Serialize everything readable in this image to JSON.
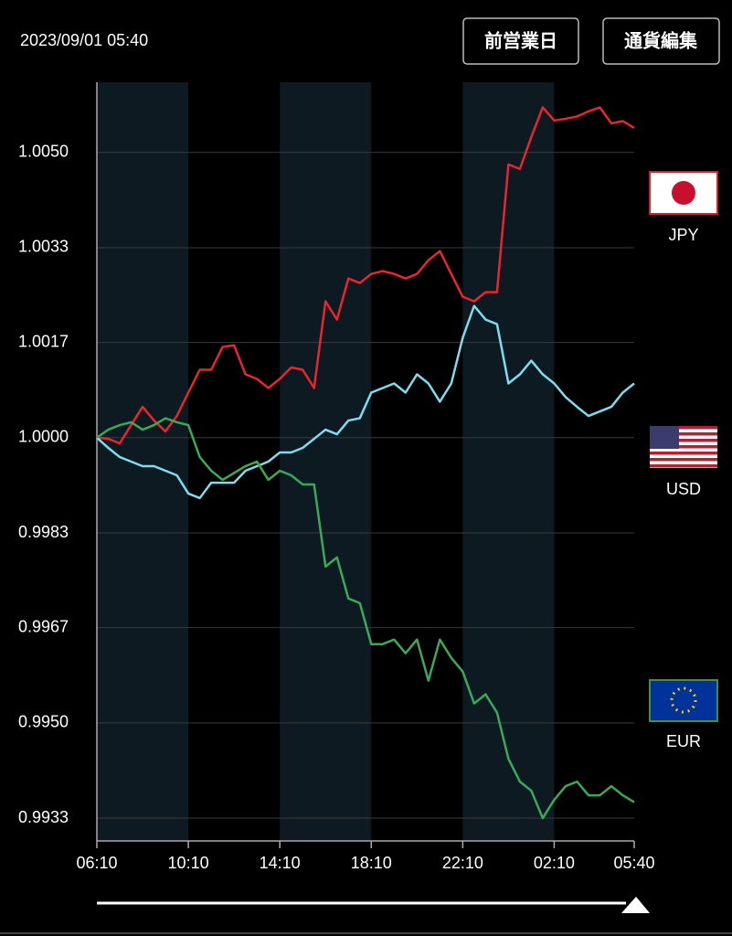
{
  "header": {
    "timestamp": "2023/09/01 05:40",
    "buttons": [
      "前営業日",
      "通貨編集"
    ]
  },
  "chart_data": {
    "type": "line",
    "x": [
      "06:10",
      "06:40",
      "07:10",
      "07:40",
      "08:10",
      "08:40",
      "09:10",
      "09:40",
      "10:10",
      "10:40",
      "11:10",
      "11:40",
      "12:10",
      "12:40",
      "13:10",
      "13:40",
      "14:10",
      "14:40",
      "15:10",
      "15:40",
      "16:10",
      "16:40",
      "17:10",
      "17:40",
      "18:10",
      "18:40",
      "19:10",
      "19:40",
      "20:10",
      "20:40",
      "21:10",
      "21:40",
      "22:10",
      "22:40",
      "23:10",
      "23:40",
      "00:10",
      "00:40",
      "01:10",
      "01:40",
      "02:10",
      "02:40",
      "03:10",
      "03:40",
      "04:10",
      "04:40",
      "05:10",
      "05:40"
    ],
    "series": [
      {
        "name": "JPY",
        "color": "#e8262d",
        "values": [
          1.0,
          0.99998,
          0.9999,
          1.00022,
          1.00054,
          1.0003,
          1.00011,
          1.00038,
          1.00079,
          1.00119,
          1.00119,
          1.00159,
          1.00162,
          1.00111,
          1.00103,
          1.00087,
          1.00103,
          1.00123,
          1.00119,
          1.00087,
          1.00239,
          1.00207,
          1.00279,
          1.00271,
          1.00287,
          1.00292,
          1.00287,
          1.00279,
          1.00287,
          1.00311,
          1.00327,
          1.00287,
          1.00247,
          1.00239,
          1.00255,
          1.00255,
          1.00479,
          1.00471,
          1.00527,
          1.00579,
          1.00556,
          1.00559,
          1.00563,
          1.00572,
          1.00579,
          1.00551,
          1.00555,
          1.00543
        ]
      },
      {
        "name": "USD",
        "color": "#7fdcef",
        "values": [
          1.0,
          0.99982,
          0.99966,
          0.99958,
          0.9995,
          0.9995,
          0.99942,
          0.99934,
          0.99902,
          0.99894,
          0.99921,
          0.99921,
          0.99921,
          0.99942,
          0.9995,
          0.99958,
          0.99974,
          0.99974,
          0.99982,
          0.99998,
          1.00014,
          1.00006,
          1.0003,
          1.00034,
          1.00079,
          1.00087,
          1.00095,
          1.00079,
          1.00111,
          1.00095,
          1.00063,
          1.00095,
          1.00175,
          1.00231,
          1.00207,
          1.00199,
          1.00095,
          1.00111,
          1.00135,
          1.00111,
          1.00095,
          1.00071,
          1.00054,
          1.00038,
          1.00046,
          1.00054,
          1.00079,
          1.00095
        ]
      },
      {
        "name": "EUR",
        "color": "#3aa95a",
        "values": [
          1.0,
          1.00014,
          1.00022,
          1.00027,
          1.00014,
          1.00022,
          1.00034,
          1.00027,
          1.00022,
          0.99966,
          0.99942,
          0.99926,
          0.99938,
          0.9995,
          0.99958,
          0.99926,
          0.99942,
          0.99934,
          0.99918,
          0.99918,
          0.99774,
          0.9979,
          0.99718,
          0.9971,
          0.99638,
          0.99638,
          0.99646,
          0.99622,
          0.99646,
          0.99574,
          0.99646,
          0.99614,
          0.9959,
          0.99534,
          0.9955,
          0.99518,
          0.99437,
          0.99397,
          0.99381,
          0.99333,
          0.99365,
          0.99389,
          0.99397,
          0.99373,
          0.99373,
          0.99389,
          0.99373,
          0.99361
        ]
      }
    ],
    "xlim": [
      "06:10",
      "05:40"
    ],
    "xticks": [
      "06:10",
      "10:10",
      "14:10",
      "18:10",
      "22:10",
      "02:10",
      "05:40"
    ],
    "ylim": [
      0.99293,
      1.00623
    ],
    "yticks": [
      {
        "value": 1.005,
        "label": "1.0050"
      },
      {
        "value": 1.00333,
        "label": "1.0033"
      },
      {
        "value": 1.00167,
        "label": "1.0017"
      },
      {
        "value": 1,
        "label": "1.0000"
      },
      {
        "value": 0.99833,
        "label": "0.9983"
      },
      {
        "value": 0.99667,
        "label": "0.9967"
      },
      {
        "value": 0.995,
        "label": "0.9950"
      },
      {
        "value": 0.99333,
        "label": "0.9933"
      }
    ],
    "grid": true
  }
}
